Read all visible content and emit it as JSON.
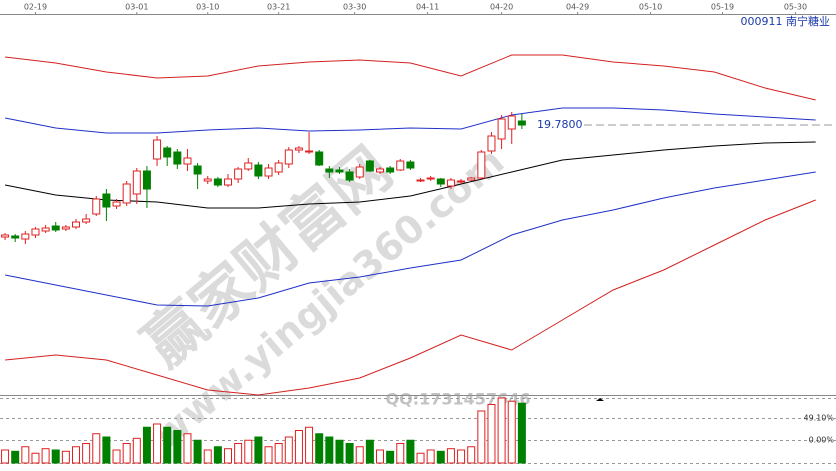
{
  "chart_data": {
    "type": "candlestick",
    "code_name": "000911 南宁糖业",
    "xlim": [
      -0.5,
      82
    ],
    "xticks": [
      {
        "value": 3,
        "label": "02-19"
      },
      {
        "value": 13,
        "label": "03-01"
      },
      {
        "value": 20,
        "label": "03-10"
      },
      {
        "value": 27,
        "label": "03-21"
      },
      {
        "value": 34.5,
        "label": "03-30"
      },
      {
        "value": 41.7,
        "label": "04-11"
      },
      {
        "value": 49,
        "label": "04-20"
      },
      {
        "value": 56.5,
        "label": "04-29"
      },
      {
        "value": 63.7,
        "label": "05-10"
      },
      {
        "value": 70.8,
        "label": "05-19"
      },
      {
        "value": 78,
        "label": "05-30"
      }
    ],
    "ylim": [
      14.38,
      21.98
    ],
    "open": [
      17.54,
      17.56,
      17.5,
      17.58,
      17.66,
      17.76,
      17.7,
      17.74,
      17.84,
      18.0,
      18.4,
      18.16,
      18.22,
      18.4,
      18.86,
      19.1,
      19.32,
      19.24,
      19.0,
      18.96,
      18.66,
      18.7,
      18.58,
      18.7,
      18.9,
      18.98,
      18.76,
      18.84,
      19.0,
      19.28,
      19.24,
      19.24,
      18.9,
      18.88,
      18.84,
      18.74,
      19.06,
      18.84,
      18.92,
      18.88,
      19.04,
      18.68,
      18.7,
      18.7,
      18.56,
      18.64,
      18.68,
      18.72,
      19.26,
      19.5,
      19.7,
      19.86
    ],
    "close": [
      17.58,
      17.52,
      17.6,
      17.7,
      17.72,
      17.68,
      17.74,
      17.84,
      17.9,
      18.3,
      18.14,
      18.24,
      18.6,
      18.86,
      18.5,
      19.48,
      19.14,
      19.0,
      19.12,
      18.8,
      18.7,
      18.58,
      18.7,
      18.9,
      19.02,
      18.76,
      18.92,
      19.02,
      19.28,
      19.32,
      19.26,
      18.98,
      18.84,
      18.84,
      18.68,
      18.94,
      18.86,
      18.9,
      18.84,
      19.06,
      18.92,
      18.68,
      18.72,
      18.6,
      18.68,
      18.66,
      18.72,
      19.24,
      19.56,
      19.9,
      19.96,
      19.78
    ],
    "high": [
      17.62,
      17.6,
      17.66,
      17.74,
      17.78,
      17.84,
      17.78,
      17.9,
      18.0,
      18.36,
      18.5,
      18.3,
      18.66,
      18.92,
      18.96,
      19.56,
      19.36,
      19.3,
      19.3,
      19.02,
      18.76,
      18.74,
      18.8,
      18.94,
      19.12,
      19.04,
      19.0,
      19.08,
      19.34,
      19.36,
      19.64,
      19.28,
      18.96,
      18.94,
      18.9,
      19.0,
      19.08,
      18.94,
      18.96,
      19.1,
      19.08,
      18.72,
      18.76,
      18.72,
      18.72,
      18.7,
      18.74,
      19.28,
      19.64,
      19.98,
      20.04,
      20.0
    ],
    "low": [
      17.48,
      17.44,
      17.4,
      17.52,
      17.62,
      17.64,
      17.66,
      17.7,
      17.8,
      17.96,
      17.86,
      18.1,
      18.16,
      18.2,
      18.12,
      18.96,
      18.96,
      18.9,
      18.86,
      18.5,
      18.6,
      18.54,
      18.54,
      18.62,
      18.86,
      18.7,
      18.7,
      18.78,
      18.92,
      19.22,
      19.2,
      18.96,
      18.72,
      18.8,
      18.64,
      18.7,
      18.84,
      18.8,
      18.8,
      18.86,
      18.88,
      18.64,
      18.66,
      18.54,
      18.5,
      18.6,
      18.66,
      18.7,
      19.2,
      19.3,
      19.4,
      19.7
    ],
    "vlim": [
      0,
      100
    ],
    "volume": [
      20,
      18,
      25,
      15,
      22,
      20,
      18,
      25,
      30,
      45,
      40,
      20,
      30,
      38,
      55,
      60,
      55,
      50,
      45,
      35,
      20,
      25,
      22,
      30,
      35,
      40,
      25,
      30,
      40,
      50,
      55,
      45,
      40,
      35,
      30,
      25,
      35,
      20,
      18,
      30,
      35,
      15,
      20,
      18,
      22,
      20,
      25,
      80,
      90,
      100,
      95,
      92
    ],
    "line_x": [
      0,
      5,
      10,
      15,
      20,
      25,
      30,
      35,
      40,
      45,
      50,
      55,
      60,
      65,
      70,
      75,
      80
    ],
    "series": [
      {
        "color": "#d42020",
        "values": [
          21.14,
          21.02,
          20.84,
          20.72,
          20.76,
          20.96,
          21.04,
          21.08,
          21.02,
          20.76,
          21.18,
          21.18,
          21.04,
          20.96,
          20.84,
          20.52,
          20.28
        ]
      },
      {
        "color": "#2030c8",
        "values": [
          19.92,
          19.72,
          19.62,
          19.62,
          19.68,
          19.72,
          19.66,
          19.68,
          19.72,
          19.7,
          19.98,
          20.12,
          20.12,
          20.08,
          20.0,
          19.94,
          19.88
        ]
      },
      {
        "color": "#000000",
        "values": [
          18.58,
          18.38,
          18.28,
          18.24,
          18.12,
          18.12,
          18.2,
          18.24,
          18.36,
          18.6,
          18.84,
          19.08,
          19.18,
          19.28,
          19.36,
          19.42,
          19.44
        ]
      },
      {
        "color": "#2030c8",
        "values": [
          16.78,
          16.58,
          16.38,
          16.18,
          16.16,
          16.32,
          16.62,
          16.74,
          16.92,
          17.08,
          17.58,
          17.88,
          18.08,
          18.32,
          18.52,
          18.68,
          18.84
        ]
      },
      {
        "color": "#d42020",
        "values": [
          15.08,
          15.18,
          15.08,
          14.78,
          14.48,
          14.38,
          14.52,
          14.72,
          15.12,
          15.58,
          15.28,
          15.88,
          16.48,
          16.88,
          17.38,
          17.88,
          18.28
        ]
      }
    ],
    "price_label": {
      "value": 19.78,
      "label": "19.7800"
    },
    "volume_labels": [
      "49.10%",
      "0.00%"
    ],
    "watermarks": [
      "赢家财富网",
      "www.yingjia360.com",
      "QQ:1731457646"
    ]
  }
}
